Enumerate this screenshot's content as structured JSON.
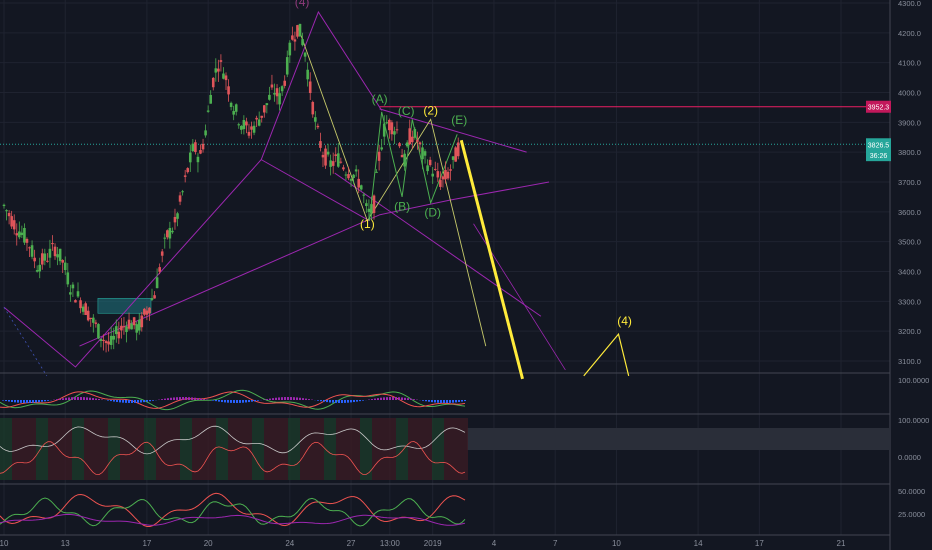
{
  "chart_data": {
    "type": "candlestick",
    "main_panel": {
      "y_ticks": [
        "4300.0",
        "4200.0",
        "4100.0",
        "4000.0",
        "3900.0",
        "3800.0",
        "3700.0",
        "3600.0",
        "3500.0",
        "3400.0",
        "3300.0",
        "3200.0",
        "3100.0"
      ],
      "ylim": [
        3050,
        4300
      ],
      "price_labels": [
        {
          "text": "3952.3",
          "value": 3952.3,
          "color": "#c2185b"
        },
        {
          "text": "3826.5",
          "value": 3826.5,
          "color": "#26a69a"
        },
        {
          "text": "36:26",
          "value": 3790,
          "color": "#26a69a"
        }
      ],
      "horizontal_lines": [
        {
          "value": 3952.3,
          "color": "#e91e63"
        },
        {
          "value": 3826.5,
          "color": "#26a69a",
          "dotted": true
        }
      ],
      "wave_labels": [
        {
          "text": "(4)",
          "x": 24.6,
          "y": 4290,
          "color": "#8e3a7a"
        },
        {
          "text": "(A)",
          "x": 28.4,
          "y": 3965,
          "color": "#4caf50"
        },
        {
          "text": "(C)",
          "x": 29.7,
          "y": 3925,
          "color": "#4caf50"
        },
        {
          "text": "(2)",
          "x": 30.9,
          "y": 3927,
          "color": "#ffeb3b"
        },
        {
          "text": "(E)",
          "x": 32.3,
          "y": 3895,
          "color": "#4caf50"
        },
        {
          "text": "(B)",
          "x": 29.5,
          "y": 3605,
          "color": "#4caf50"
        },
        {
          "text": "(D)",
          "x": 31.0,
          "y": 3585,
          "color": "#4caf50"
        },
        {
          "text": "(1)",
          "x": 27.8,
          "y": 3545,
          "color": "#ffeb3b"
        },
        {
          "text": "(4)",
          "x": 40.4,
          "y": 3220,
          "color": "#ffeb3b"
        }
      ]
    },
    "x_axis": {
      "ticks": [
        {
          "label": "10",
          "x": 10
        },
        {
          "label": "13",
          "x": 13
        },
        {
          "label": "17",
          "x": 17
        },
        {
          "label": "20",
          "x": 20
        },
        {
          "label": "24",
          "x": 24
        },
        {
          "label": "27",
          "x": 27
        },
        {
          "label": "13:00",
          "x": 28.9
        },
        {
          "label": "2019",
          "x": 31
        },
        {
          "label": "4",
          "x": 34
        },
        {
          "label": "7",
          "x": 37
        },
        {
          "label": "10",
          "x": 40
        },
        {
          "label": "14",
          "x": 44
        },
        {
          "label": "17",
          "x": 47
        },
        {
          "label": "21",
          "x": 51
        }
      ],
      "xlim": [
        10,
        53
      ]
    },
    "indicator_panels": [
      {
        "name": "macd",
        "y_ticks": [
          "100.0000"
        ]
      },
      {
        "name": "oscillator",
        "y_ticks": [
          "100.0000",
          "0.0000"
        ]
      },
      {
        "name": "rsi",
        "y_ticks": [
          "50.0000",
          "25.0000"
        ]
      }
    ]
  }
}
